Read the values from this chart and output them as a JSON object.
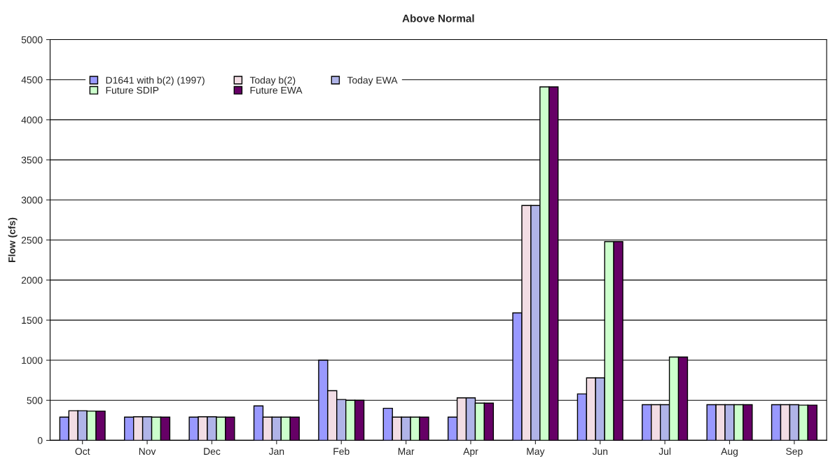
{
  "chart_data": {
    "type": "bar",
    "title": "Above Normal",
    "ylabel": "Flow (cfs)",
    "categories": [
      "Oct",
      "Nov",
      "Dec",
      "Jan",
      "Feb",
      "Mar",
      "Apr",
      "May",
      "Jun",
      "Jul",
      "Aug",
      "Sep"
    ],
    "series": [
      {
        "name": "D1641 with b(2) (1997)",
        "color": "#9999ff",
        "values": [
          290,
          290,
          290,
          430,
          1000,
          400,
          290,
          1590,
          580,
          445,
          445,
          445
        ]
      },
      {
        "name": "Today b(2)",
        "color": "#f2dde4",
        "values": [
          370,
          295,
          295,
          290,
          620,
          290,
          530,
          2930,
          780,
          445,
          445,
          445
        ]
      },
      {
        "name": "Today EWA",
        "color": "#b0b4e8",
        "values": [
          370,
          295,
          295,
          290,
          510,
          290,
          530,
          2930,
          780,
          445,
          445,
          445
        ]
      },
      {
        "name": "Future SDIP",
        "color": "#ccffcc",
        "values": [
          365,
          290,
          290,
          290,
          500,
          290,
          465,
          4410,
          2480,
          1040,
          445,
          440
        ]
      },
      {
        "name": "Future EWA",
        "color": "#660066",
        "values": [
          365,
          290,
          290,
          290,
          500,
          290,
          465,
          4410,
          2480,
          1040,
          445,
          440
        ]
      }
    ],
    "ylim": [
      0,
      5000
    ],
    "yticks": [
      0,
      500,
      1000,
      1500,
      2000,
      2500,
      3000,
      3500,
      4000,
      4500,
      5000
    ],
    "grid": "y",
    "legend": "top left"
  }
}
